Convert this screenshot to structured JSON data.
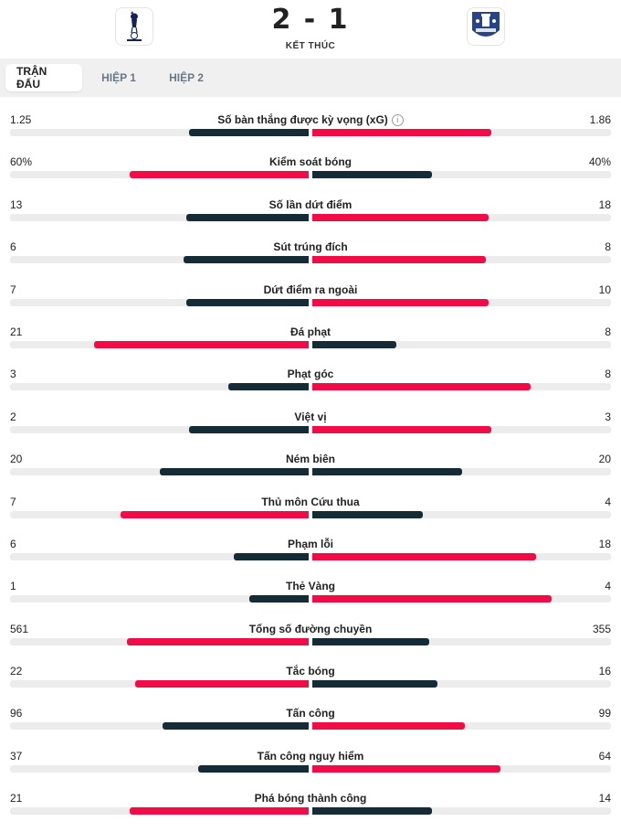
{
  "header": {
    "score": "2 - 1",
    "status": "KẾT THÚC"
  },
  "tabs": [
    {
      "label": "TRẬN ĐẤU",
      "active": true
    },
    {
      "label": "HIỆP 1",
      "active": false
    },
    {
      "label": "HIỆP 2",
      "active": false
    }
  ],
  "colors": {
    "dark": "#152c37",
    "red": "#f20c47",
    "track": "#ececec"
  },
  "stats": [
    {
      "label": "Số bàn thắng được kỳ vọng (xG)",
      "left": "1.25",
      "right": "1.86",
      "lfrac": 0.4,
      "rfrac": 0.6,
      "lc": "dark",
      "rc": "red",
      "info": true
    },
    {
      "label": "Kiểm soát bóng",
      "left": "60%",
      "right": "40%",
      "lfrac": 0.6,
      "rfrac": 0.4,
      "lc": "red",
      "rc": "dark"
    },
    {
      "label": "Số lần dứt điểm",
      "left": "13",
      "right": "18",
      "lfrac": 0.41,
      "rfrac": 0.59,
      "lc": "dark",
      "rc": "red"
    },
    {
      "label": "Sút trúng đích",
      "left": "6",
      "right": "8",
      "lfrac": 0.42,
      "rfrac": 0.58,
      "lc": "dark",
      "rc": "red"
    },
    {
      "label": "Dứt điểm ra ngoài",
      "left": "7",
      "right": "10",
      "lfrac": 0.41,
      "rfrac": 0.59,
      "lc": "dark",
      "rc": "red"
    },
    {
      "label": "Đá phạt",
      "left": "21",
      "right": "8",
      "lfrac": 0.72,
      "rfrac": 0.28,
      "lc": "red",
      "rc": "dark"
    },
    {
      "label": "Phạt góc",
      "left": "3",
      "right": "8",
      "lfrac": 0.27,
      "rfrac": 0.73,
      "lc": "dark",
      "rc": "red"
    },
    {
      "label": "Việt vị",
      "left": "2",
      "right": "3",
      "lfrac": 0.4,
      "rfrac": 0.6,
      "lc": "dark",
      "rc": "red"
    },
    {
      "label": "Ném biên",
      "left": "20",
      "right": "20",
      "lfrac": 0.5,
      "rfrac": 0.5,
      "lc": "dark",
      "rc": "dark"
    },
    {
      "label": "Thủ môn Cứu thua",
      "left": "7",
      "right": "4",
      "lfrac": 0.63,
      "rfrac": 0.37,
      "lc": "red",
      "rc": "dark"
    },
    {
      "label": "Phạm lỗi",
      "left": "6",
      "right": "18",
      "lfrac": 0.25,
      "rfrac": 0.75,
      "lc": "dark",
      "rc": "red"
    },
    {
      "label": "Thẻ Vàng",
      "left": "1",
      "right": "4",
      "lfrac": 0.2,
      "rfrac": 0.8,
      "lc": "dark",
      "rc": "red"
    },
    {
      "label": "Tổng số đường chuyền",
      "left": "561",
      "right": "355",
      "lfrac": 0.61,
      "rfrac": 0.39,
      "lc": "red",
      "rc": "dark"
    },
    {
      "label": "Tắc bóng",
      "left": "22",
      "right": "16",
      "lfrac": 0.58,
      "rfrac": 0.42,
      "lc": "red",
      "rc": "dark"
    },
    {
      "label": "Tấn công",
      "left": "96",
      "right": "99",
      "lfrac": 0.49,
      "rfrac": 0.51,
      "lc": "dark",
      "rc": "red"
    },
    {
      "label": "Tấn công nguy hiểm",
      "left": "37",
      "right": "64",
      "lfrac": 0.37,
      "rfrac": 0.63,
      "lc": "dark",
      "rc": "red"
    },
    {
      "label": "Phá bóng thành công",
      "left": "21",
      "right": "14",
      "lfrac": 0.6,
      "rfrac": 0.4,
      "lc": "red",
      "rc": "dark"
    }
  ]
}
